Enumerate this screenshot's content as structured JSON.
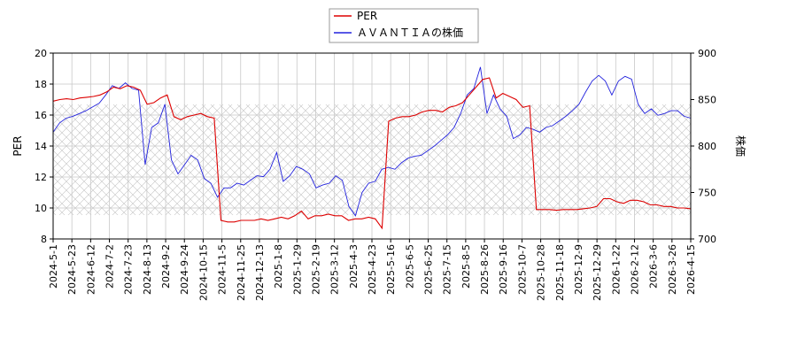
{
  "chart_data": {
    "type": "line",
    "title": "",
    "xlabel": "",
    "ylabel": "PER",
    "ylabel_right": "株価",
    "ylim": [
      8,
      20
    ],
    "ylim_right": [
      700,
      900
    ],
    "yticks": [
      "8",
      "10",
      "12",
      "14",
      "16",
      "18",
      "20"
    ],
    "yticks_right": [
      "700",
      "750",
      "800",
      "850",
      "900"
    ],
    "x_tick_labels": [
      "2024-5-1",
      "2024-5-23",
      "2024-6-12",
      "2024-7-2",
      "2024-7-23",
      "2024-8-13",
      "2024-9-2",
      "2024-9-24",
      "2024-10-15",
      "2024-11-5",
      "2024-11-25",
      "2024-12-13",
      "2025-1-8",
      "2025-1-29",
      "2025-2-19",
      "2025-3-12",
      "2025-4-3",
      "2025-4-23",
      "2025-5-16",
      "2025-6-5",
      "2025-6-25",
      "2025-7-15",
      "2025-8-5",
      "2025-8-26",
      "2025-9-16",
      "2025-10-7",
      "2025-10-28",
      "2025-11-18",
      "2025-12-9",
      "2025-12-29",
      "2026-1-22",
      "2026-2-12",
      "2026-3-6",
      "2026-3-26",
      "2026-4-15"
    ],
    "grid": true,
    "legend_position": "top-center",
    "colors": {
      "PER": "#dd0000",
      "stock": "#2222dd"
    },
    "series": [
      {
        "name": "PER",
        "axis": "left",
        "values": [
          16.9,
          17.0,
          17.05,
          17.0,
          17.1,
          17.15,
          17.2,
          17.3,
          17.5,
          17.8,
          17.7,
          17.9,
          17.8,
          17.6,
          16.7,
          16.8,
          17.1,
          17.3,
          15.9,
          15.7,
          15.9,
          16.0,
          16.1,
          15.9,
          15.8,
          9.2,
          9.1,
          9.1,
          9.2,
          9.2,
          9.2,
          9.3,
          9.2,
          9.3,
          9.4,
          9.3,
          9.5,
          9.8,
          9.3,
          9.5,
          9.5,
          9.6,
          9.5,
          9.5,
          9.2,
          9.3,
          9.3,
          9.4,
          9.3,
          8.7,
          15.6,
          15.8,
          15.9,
          15.9,
          16.0,
          16.2,
          16.3,
          16.3,
          16.2,
          16.5,
          16.6,
          16.8,
          17.3,
          17.8,
          18.3,
          18.4,
          17.1,
          17.4,
          17.2,
          17.0,
          16.5,
          16.6,
          9.9,
          9.9,
          9.9,
          9.85,
          9.9,
          9.9,
          9.9,
          9.95,
          10.0,
          10.1,
          10.6,
          10.6,
          10.4,
          10.3,
          10.5,
          10.5,
          10.4,
          10.2,
          10.2,
          10.1,
          10.1,
          10.0,
          10.0,
          9.95
        ]
      },
      {
        "name": "ＡＶＡＮＴＩＡの株価",
        "axis": "right",
        "values": [
          815,
          825,
          830,
          832,
          835,
          838,
          842,
          846,
          855,
          865,
          862,
          868,
          862,
          860,
          780,
          820,
          825,
          845,
          785,
          770,
          780,
          790,
          785,
          765,
          760,
          745,
          755,
          755,
          760,
          758,
          763,
          768,
          767,
          775,
          793,
          762,
          768,
          778,
          775,
          770,
          755,
          758,
          760,
          768,
          763,
          735,
          725,
          750,
          760,
          762,
          775,
          777,
          775,
          782,
          787,
          789,
          790,
          795,
          800,
          806,
          812,
          820,
          835,
          855,
          862,
          885,
          835,
          855,
          840,
          832,
          808,
          812,
          820,
          818,
          815,
          820,
          822,
          827,
          832,
          838,
          845,
          858,
          870,
          876,
          870,
          855,
          870,
          875,
          872,
          845,
          835,
          840,
          833,
          835,
          838,
          838,
          832,
          830
        ]
      }
    ]
  },
  "legend": {
    "items": [
      {
        "label": "PER",
        "color": "#dd0000"
      },
      {
        "label": "ＡＶＡＮＴＩＡの株価",
        "color": "#2222dd"
      }
    ]
  }
}
